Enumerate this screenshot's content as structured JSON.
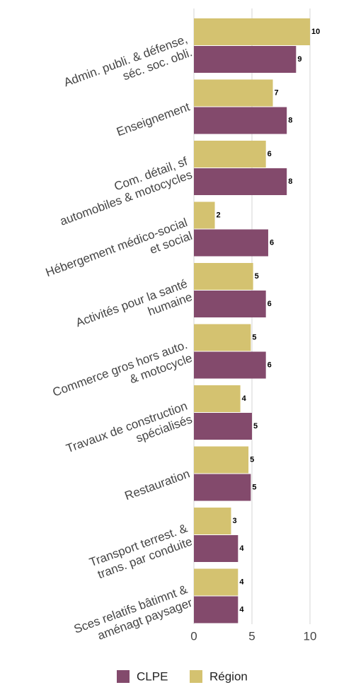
{
  "chart_data": {
    "type": "bar",
    "orientation": "horizontal",
    "categories": [
      "Admin. publi. & défense,\nséc. soc. obli.",
      "Enseignement",
      "Com. détail, sf\nautomobiles & motocycles",
      "Hébergement médico-social\net social",
      "Activités pour la santé\nhumaine",
      "Commerce gros hors auto.\n& motocycle",
      "Travaux de construction\nspécialisés",
      "Restauration",
      "Transport terrest. &\ntrans. par conduite",
      "Sces relatifs bâtimnt &\naménagt paysager"
    ],
    "series": [
      {
        "name": "CLPE",
        "color": "#834a6c",
        "values": [
          8.8,
          8.0,
          8.0,
          6.4,
          6.2,
          6.2,
          5.0,
          4.9,
          3.8,
          3.8
        ],
        "value_labels": [
          "9",
          "8",
          "8",
          "6",
          "6",
          "6",
          "5",
          "5",
          "4",
          "4"
        ]
      },
      {
        "name": "Région",
        "color": "#d4c270",
        "values": [
          10.0,
          6.8,
          6.2,
          1.8,
          5.1,
          4.9,
          4.0,
          4.7,
          3.2,
          3.8
        ],
        "value_labels": [
          "10",
          "7",
          "6",
          "2",
          "5",
          "5",
          "4",
          "5",
          "3",
          "4"
        ]
      }
    ],
    "xlim": [
      0,
      10.5
    ],
    "xticks": [
      0,
      5,
      10
    ],
    "grid": true,
    "legend": "bottom"
  }
}
